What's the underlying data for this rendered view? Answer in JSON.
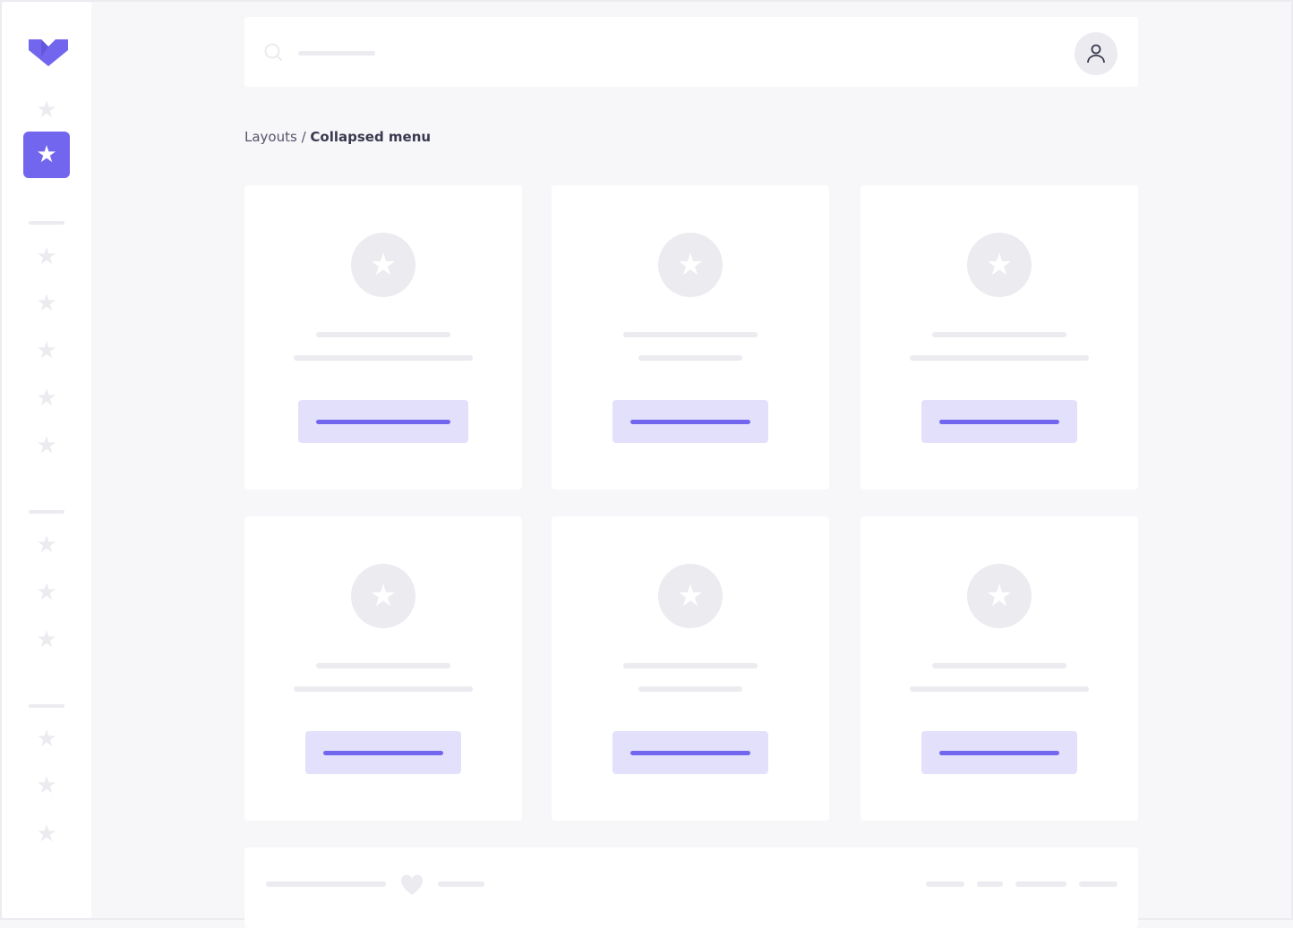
{
  "breadcrumb": {
    "parent": "Layouts",
    "separator": " / ",
    "current": "Collapsed menu"
  },
  "colors": {
    "accent": "#7366ee",
    "accent_light": "#e3e0fc",
    "placeholder": "#ebebf0",
    "background": "#f7f7f9"
  },
  "icons": {
    "logo": "heart-chevron-logo",
    "nav": "star-icon",
    "search": "search-icon",
    "user": "user-icon",
    "footer": "heart-icon"
  },
  "sidebar": {
    "active_index": 1
  }
}
